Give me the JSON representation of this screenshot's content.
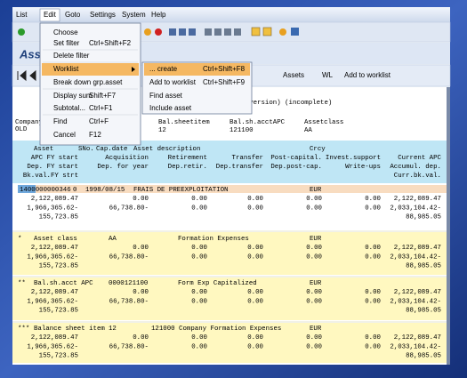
{
  "menubar": [
    "List",
    "Edit",
    "Goto",
    "Settings",
    "System",
    "Help"
  ],
  "title": "Asse",
  "app_toolbar": [
    "Assets",
    "WL",
    "Add to worklist"
  ],
  "header_lines": [
    "R",
    "wide version) (incomplete)"
  ],
  "selection": {
    "left": [
      "CompanyC",
      "OLD"
    ],
    "fields": [
      {
        "label": "Bal.sheetitem",
        "value": "12"
      },
      {
        "label": "Bal.sh.acctAPC",
        "value": "121100"
      },
      {
        "label": "Assetclass",
        "value": "AA"
      }
    ]
  },
  "edit_menu": [
    {
      "label": "Choose",
      "shortcut": null,
      "disabled": false,
      "highlighted": false
    },
    {
      "label": "Set filter",
      "shortcut": "Ctrl+Shift+F2",
      "disabled": false,
      "highlighted": false
    },
    {
      "label": "Delete filter",
      "shortcut": null,
      "disabled": true,
      "highlighted": false
    },
    {
      "label": "Worklist",
      "shortcut": null,
      "disabled": false,
      "highlighted": true,
      "submenu": true
    },
    {
      "label": "Break down grp.asset",
      "shortcut": null,
      "disabled": true,
      "highlighted": false
    },
    {
      "label": "Display sum",
      "shortcut": "Shift+F7",
      "disabled": false,
      "highlighted": false
    },
    {
      "label": "Subtotal...",
      "shortcut": "Ctrl+F1",
      "disabled": false,
      "highlighted": false
    },
    {
      "label": "Find",
      "shortcut": "Ctrl+F",
      "disabled": false,
      "highlighted": false
    },
    {
      "label": "Cancel",
      "shortcut": "F12",
      "disabled": false,
      "highlighted": false
    }
  ],
  "worklist_submenu": [
    {
      "label": "... create",
      "shortcut": "Ctrl+Shift+F8",
      "highlighted": true
    },
    {
      "label": "Add to worklist",
      "shortcut": "Ctrl+Shift+F9",
      "highlighted": false
    },
    {
      "label": "Find asset",
      "shortcut": null,
      "highlighted": false
    },
    {
      "label": "Include asset",
      "shortcut": null,
      "highlighted": false
    }
  ],
  "column_header": {
    "first": [
      "Asset",
      "SNo.",
      "Cap.date",
      "Asset description",
      "Crcy"
    ],
    "rows": [
      [
        "APC FY start",
        "Acquisition",
        "Retirement",
        "Transfer",
        "Post-capital.",
        "Invest.support",
        "Current APC"
      ],
      [
        "Dep. FY start",
        "Dep. for year",
        "Dep.retir.",
        "Dep.transfer",
        "Dep.post-cap.",
        "Write-ups",
        "Accumul. dep."
      ],
      [
        "Bk.val.FY strt",
        null,
        null,
        null,
        null,
        null,
        "Curr.bk.val."
      ]
    ]
  },
  "blocks": [
    {
      "title": [
        "1400000000346",
        "0",
        "1998/08/15",
        "FRAIS DE PREEXPLOITATION",
        "EUR"
      ],
      "rows": [
        [
          "2,122,089.47",
          "0.00",
          "0.00",
          "0.00",
          "0.00",
          "0.00",
          "2,122,089.47"
        ],
        [
          "1,966,365.62-",
          "66,738.80-",
          "0.00",
          "0.00",
          "0.00",
          "0.00",
          "2,033,104.42-"
        ],
        [
          "155,723.85",
          null,
          null,
          null,
          null,
          null,
          "88,985.05"
        ]
      ]
    },
    {
      "title": [
        "*",
        "Asset class",
        "AA",
        "Formation Expenses",
        "EUR"
      ],
      "rows": [
        [
          "2,122,089.47",
          "0.00",
          "0.00",
          "0.00",
          "0.00",
          "0.00",
          "2,122,089.47"
        ],
        [
          "1,966,365.62-",
          "66,738.80-",
          "0.00",
          "0.00",
          "0.00",
          "0.00",
          "2,033,104.42-"
        ],
        [
          "155,723.85",
          null,
          null,
          null,
          null,
          null,
          "88,985.05"
        ]
      ]
    },
    {
      "title": [
        "**",
        "Bal.sh.acct APC",
        "0000121100",
        "Form Exp Capitalized",
        "EUR"
      ],
      "rows": [
        [
          "2,122,089.47",
          "0.00",
          "0.00",
          "0.00",
          "0.00",
          "0.00",
          "2,122,089.47"
        ],
        [
          "1,966,365.62-",
          "66,738.80-",
          "0.00",
          "0.00",
          "0.00",
          "0.00",
          "2,033,104.42-"
        ],
        [
          "155,723.85",
          null,
          null,
          null,
          null,
          null,
          "88,985.05"
        ]
      ]
    },
    {
      "title": [
        "***",
        "Balance sheet item",
        "12",
        "121000 Company Formation Expenses",
        "EUR"
      ],
      "rows": [
        [
          "2,122,089.47",
          "0.00",
          "0.00",
          "0.00",
          "0.00",
          "0.00",
          "2,122,089.47"
        ],
        [
          "1,966,365.62-",
          "66,738.80-",
          "0.00",
          "0.00",
          "0.00",
          "0.00",
          "2,033,104.42-"
        ],
        [
          "155,723.85",
          null,
          null,
          null,
          null,
          null,
          "88,985.05"
        ]
      ]
    }
  ]
}
